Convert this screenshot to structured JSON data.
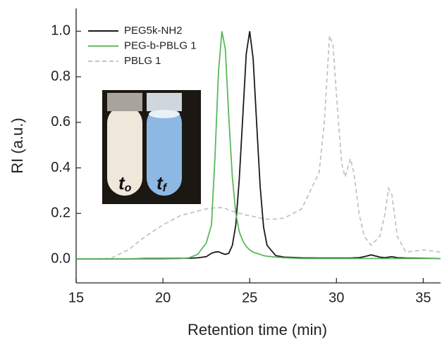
{
  "chart_data": {
    "type": "line",
    "xlabel": "Retention time (min)",
    "ylabel": "RI (a.u.)",
    "x": [
      15,
      16,
      17,
      18,
      19,
      20,
      21,
      21.5,
      22,
      22.5,
      22.8,
      23,
      23.2,
      23.4,
      23.6,
      23.8,
      24,
      24.2,
      24.4,
      24.6,
      24.8,
      25,
      25.2,
      25.4,
      25.6,
      25.8,
      26,
      26.5,
      27,
      28,
      29,
      29.3,
      29.6,
      29.8,
      30,
      30.3,
      30.5,
      30.8,
      31,
      31.3,
      31.6,
      32,
      32.5,
      32.8,
      33,
      33.2,
      33.5,
      34,
      35,
      36
    ],
    "series": [
      {
        "name": "PEG5k-NH2",
        "color": "#1a1a1a",
        "dash": false,
        "values": [
          0,
          0,
          0,
          0,
          0.002,
          0.002,
          0.003,
          0.003,
          0.005,
          0.01,
          0.025,
          0.03,
          0.032,
          0.025,
          0.02,
          0.025,
          0.06,
          0.15,
          0.35,
          0.62,
          0.9,
          1.0,
          0.88,
          0.6,
          0.32,
          0.14,
          0.06,
          0.015,
          0.008,
          0.005,
          0.004,
          0.004,
          0.004,
          0.004,
          0.004,
          0.004,
          0.004,
          0.004,
          0.005,
          0.006,
          0.01,
          0.018,
          0.008,
          0.006,
          0.008,
          0.01,
          0.006,
          0.004,
          0.003,
          0.002
        ]
      },
      {
        "name": "PEG-b-PBLG 1",
        "color": "#5cb85c",
        "dash": false,
        "values": [
          0,
          0,
          0,
          0,
          0,
          0,
          0.002,
          0.005,
          0.02,
          0.07,
          0.15,
          0.45,
          0.82,
          1.0,
          0.92,
          0.62,
          0.36,
          0.2,
          0.12,
          0.08,
          0.055,
          0.04,
          0.03,
          0.025,
          0.02,
          0.015,
          0.012,
          0.008,
          0.005,
          0.002,
          0.002,
          0.002,
          0.002,
          0.002,
          0.002,
          0.002,
          0.002,
          0.002,
          0.002,
          0.002,
          0.002,
          0.002,
          0.002,
          0.002,
          0.002,
          0.002,
          0.002,
          0.002,
          0.002,
          0.002
        ]
      },
      {
        "name": "PBLG 1",
        "color": "#c4c4c4",
        "dash": true,
        "values": [
          0,
          0,
          0.003,
          0.04,
          0.1,
          0.15,
          0.19,
          0.2,
          0.21,
          0.22,
          0.222,
          0.225,
          0.225,
          0.225,
          0.222,
          0.215,
          0.21,
          0.205,
          0.2,
          0.198,
          0.193,
          0.19,
          0.187,
          0.183,
          0.18,
          0.177,
          0.175,
          0.175,
          0.18,
          0.22,
          0.38,
          0.6,
          0.98,
          0.94,
          0.72,
          0.42,
          0.36,
          0.44,
          0.38,
          0.2,
          0.1,
          0.06,
          0.1,
          0.2,
          0.31,
          0.28,
          0.1,
          0.03,
          0.04,
          0.03
        ]
      }
    ],
    "xlim": [
      15,
      36
    ],
    "ylim": [
      -0.105,
      1.1
    ],
    "xticks": [
      15,
      20,
      25,
      30,
      35
    ],
    "yticks": [
      {
        "value": 0,
        "label": "0.0"
      },
      {
        "value": 0.2,
        "label": "0.2"
      },
      {
        "value": 0.4,
        "label": "0.4"
      },
      {
        "value": 0.6,
        "label": "0.6"
      },
      {
        "value": 0.8,
        "label": "0.8"
      },
      {
        "value": 1.0,
        "label": "1.0"
      }
    ],
    "inset_labels": [
      {
        "main": "t",
        "sub": "o"
      },
      {
        "main": "t",
        "sub": "f"
      }
    ]
  }
}
